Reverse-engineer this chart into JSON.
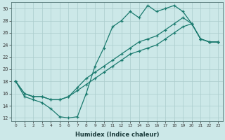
{
  "xlabel": "Humidex (Indice chaleur)",
  "bg_color": "#cce8e8",
  "line_color": "#1a7a6e",
  "grid_color": "#aacccc",
  "xlim": [
    -0.5,
    23.5
  ],
  "ylim": [
    11.5,
    31
  ],
  "xticks": [
    0,
    1,
    2,
    3,
    4,
    5,
    6,
    7,
    8,
    9,
    10,
    11,
    12,
    13,
    14,
    15,
    16,
    17,
    18,
    19,
    20,
    21,
    22,
    23
  ],
  "yticks": [
    12,
    14,
    16,
    18,
    20,
    22,
    24,
    26,
    28,
    30
  ],
  "line1_x": [
    0,
    1,
    2,
    3,
    4,
    5,
    6,
    7,
    8,
    9,
    10,
    11,
    12,
    13,
    14,
    15,
    16,
    17,
    18,
    19,
    20,
    21,
    22,
    23
  ],
  "line1_y": [
    18,
    15.5,
    15,
    14.5,
    13.5,
    12.2,
    12.0,
    12.2,
    16.0,
    20.5,
    23.5,
    27.0,
    28.0,
    29.5,
    28.5,
    30.5,
    29.5,
    30.0,
    30.5,
    29.5,
    27.5,
    25.0,
    24.5,
    24.5
  ],
  "line2_x": [
    0,
    1,
    2,
    3,
    4,
    5,
    6,
    7,
    8,
    9,
    10,
    11,
    12,
    13,
    14,
    15,
    16,
    17,
    18,
    19,
    20,
    21,
    22,
    23
  ],
  "line2_y": [
    18,
    16.0,
    15.5,
    15.5,
    15.0,
    15.0,
    15.5,
    16.5,
    17.5,
    18.5,
    19.5,
    20.5,
    21.5,
    22.5,
    23.0,
    23.5,
    24.0,
    25.0,
    26.0,
    27.0,
    27.5,
    25.0,
    24.5,
    24.5
  ],
  "line3_x": [
    0,
    1,
    2,
    3,
    4,
    5,
    6,
    7,
    8,
    9,
    10,
    11,
    12,
    13,
    14,
    15,
    16,
    17,
    18,
    19,
    20,
    21,
    22,
    23
  ],
  "line3_y": [
    18,
    16.0,
    15.5,
    15.5,
    15.0,
    15.0,
    15.5,
    17.0,
    18.5,
    19.5,
    20.5,
    21.5,
    22.5,
    23.5,
    24.5,
    25.0,
    25.5,
    26.5,
    27.5,
    28.5,
    27.5,
    25.0,
    24.5,
    24.5
  ]
}
